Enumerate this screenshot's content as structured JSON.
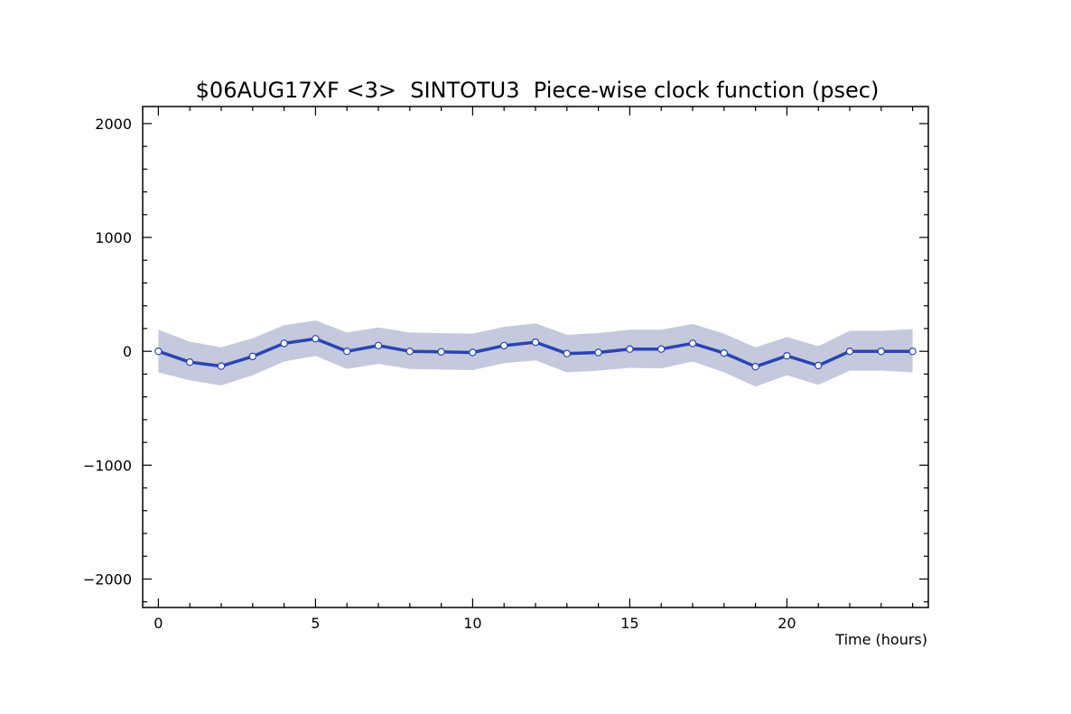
{
  "chart_data": {
    "type": "line",
    "title": "$06AUG17XF <3>  SINTOTU3  Piece-wise clock function (psec)",
    "xlabel": "Time (hours)",
    "ylabel": "",
    "xlim": [
      -0.5,
      24.5
    ],
    "ylim": [
      -2250,
      2150
    ],
    "x_ticks": [
      0,
      5,
      10,
      15,
      20
    ],
    "x_tick_labels": [
      "0",
      "5",
      "10",
      "15",
      "20"
    ],
    "y_ticks": [
      -2000,
      -1000,
      0,
      1000,
      2000
    ],
    "y_tick_labels": [
      "−2000",
      "−1000",
      "0",
      "1000",
      "2000"
    ],
    "grid": false,
    "series": [
      {
        "x": [
          0,
          1,
          2,
          3,
          4,
          5,
          6,
          7,
          8,
          9,
          10,
          11,
          12,
          13,
          14,
          15,
          16,
          17,
          18,
          19,
          20,
          21,
          22,
          23,
          24
        ],
        "values": [
          0,
          -95,
          -130,
          -45,
          70,
          110,
          0,
          50,
          0,
          -5,
          -10,
          50,
          80,
          -20,
          -10,
          20,
          20,
          70,
          -15,
          -135,
          -40,
          -125,
          0,
          0,
          0
        ],
        "upper": [
          190,
          85,
          35,
          115,
          230,
          270,
          165,
          210,
          165,
          160,
          155,
          215,
          245,
          145,
          160,
          190,
          190,
          240,
          155,
          35,
          125,
          45,
          180,
          180,
          195
        ],
        "lower": [
          -185,
          -255,
          -300,
          -210,
          -90,
          -40,
          -155,
          -110,
          -155,
          -160,
          -165,
          -105,
          -80,
          -185,
          -170,
          -145,
          -150,
          -90,
          -185,
          -310,
          -210,
          -295,
          -170,
          -170,
          -185
        ]
      }
    ],
    "colors": {
      "line": "#2a44b4",
      "band": "#c4c9dd",
      "marker_fill": "#ffffff",
      "marker_stroke": "#2a44b4"
    }
  }
}
